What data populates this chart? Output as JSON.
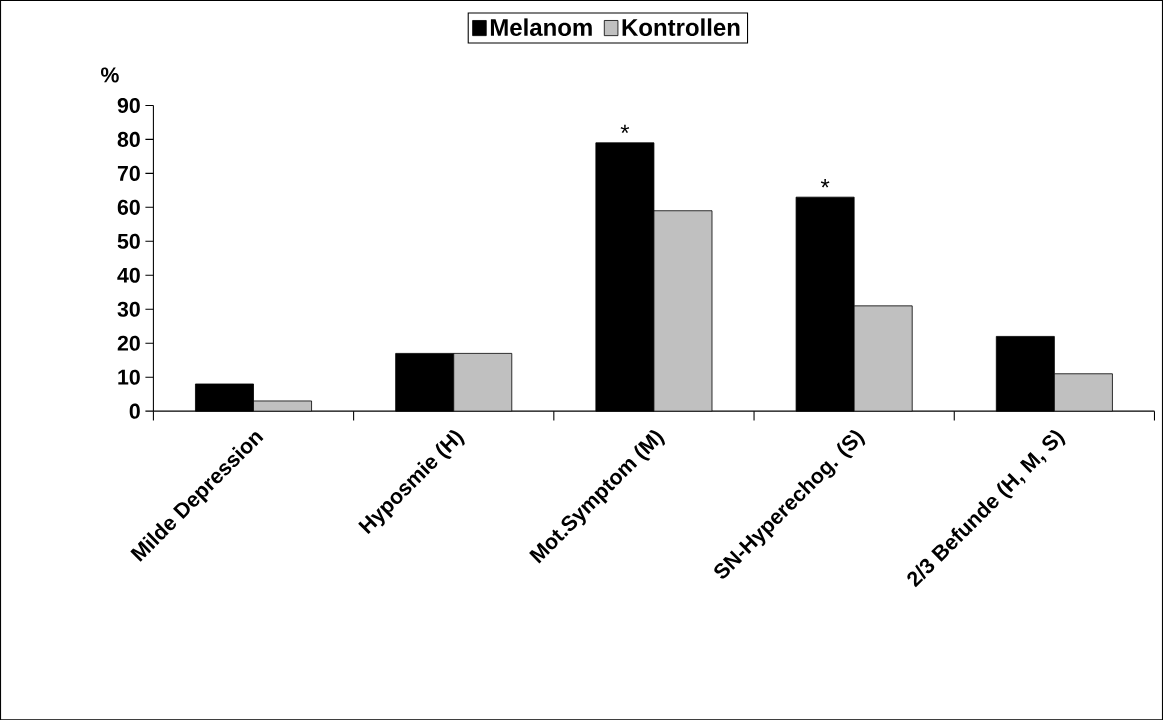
{
  "chart_data": {
    "type": "bar",
    "ylabel": "%",
    "categories": [
      "Milde Depression",
      "Hyposmie (H)",
      "Mot.Symptom (M)",
      "SN-Hyperechog. (S)",
      "2/3 Befunde (H, M, S)"
    ],
    "series": [
      {
        "name": "Melanom",
        "color": "#000000",
        "values": [
          8,
          17,
          79,
          63,
          22
        ]
      },
      {
        "name": "Kontrollen",
        "color": "#c0c0c0",
        "values": [
          3,
          17,
          59,
          31,
          11
        ]
      }
    ],
    "ylim": [
      0,
      90
    ],
    "yticks": [
      0,
      10,
      20,
      30,
      40,
      50,
      60,
      70,
      80,
      90
    ],
    "grid": false,
    "legend": "top",
    "annotations": [
      {
        "text": "*",
        "x": "Mot.Symptom (M)",
        "y": 79
      },
      {
        "text": "*",
        "x": "SN-Hyperechog. (S)",
        "y": 63
      }
    ]
  }
}
